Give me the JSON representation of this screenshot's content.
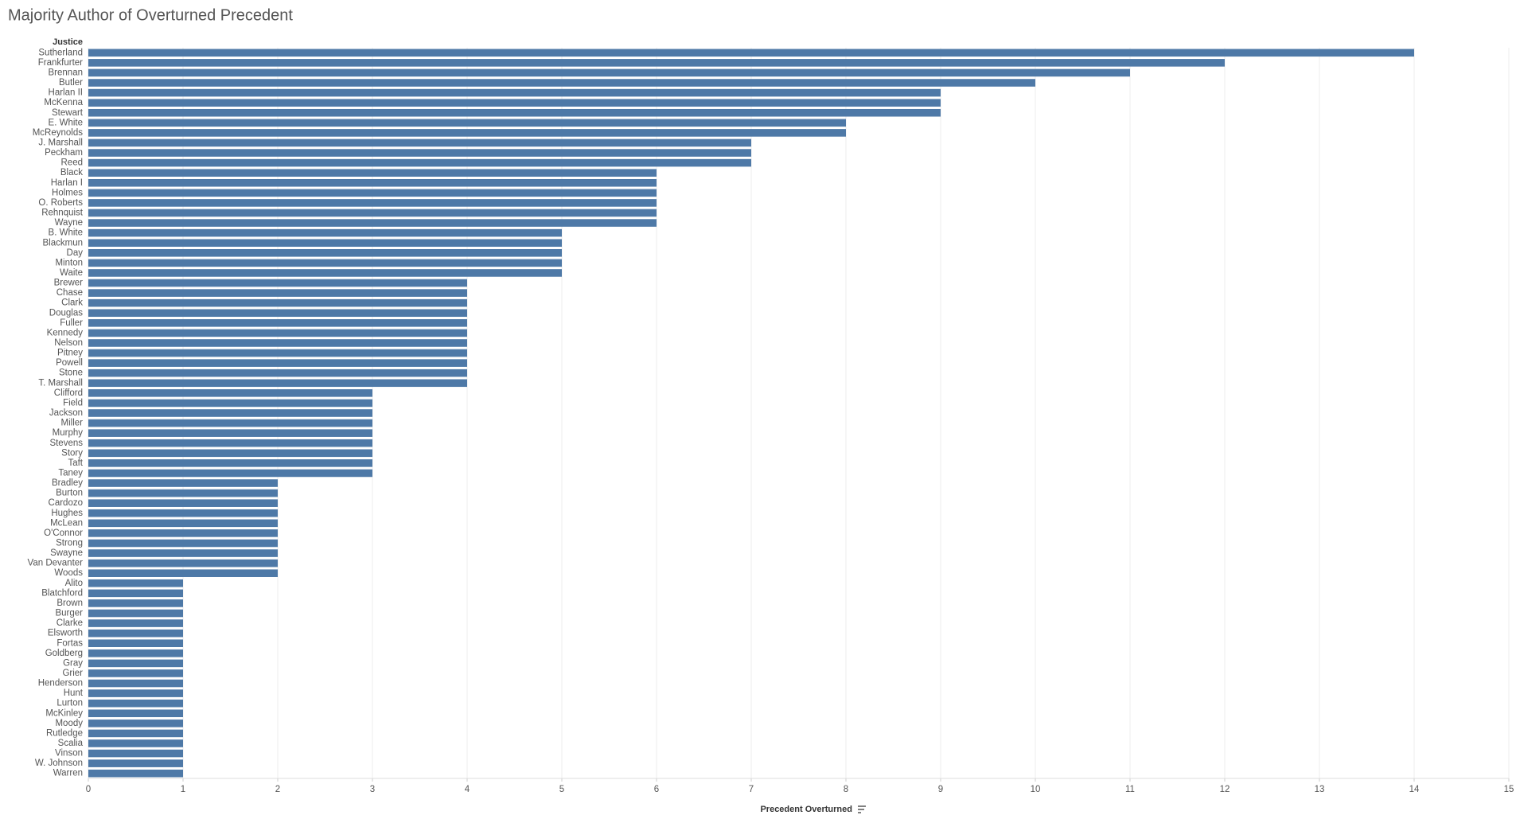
{
  "chart_data": {
    "type": "bar",
    "orientation": "horizontal",
    "title": "Majority Author of Overturned Precedent",
    "y_label": "Justice",
    "x_label": "Precedent Overturned",
    "color": "#4e79a7",
    "grid": true,
    "xlim": [
      0,
      15
    ],
    "xticks": [
      0,
      1,
      2,
      3,
      4,
      5,
      6,
      7,
      8,
      9,
      10,
      11,
      12,
      13,
      14,
      15
    ],
    "categories": [
      "Sutherland",
      "Frankfurter",
      "Brennan",
      "Butler",
      "Harlan II",
      "McKenna",
      "Stewart",
      "E. White",
      "McReynolds",
      "J. Marshall",
      "Peckham",
      "Reed",
      "Black",
      "Harlan I",
      "Holmes",
      "O. Roberts",
      "Rehnquist",
      "Wayne",
      "B. White",
      "Blackmun",
      "Day",
      "Minton",
      "Waite",
      "Brewer",
      "Chase",
      "Clark",
      "Douglas",
      "Fuller",
      "Kennedy",
      "Nelson",
      "Pitney",
      "Powell",
      "Stone",
      "T. Marshall",
      "Clifford",
      "Field",
      "Jackson",
      "Miller",
      "Murphy",
      "Stevens",
      "Story",
      "Taft",
      "Taney",
      "Bradley",
      "Burton",
      "Cardozo",
      "Hughes",
      "McLean",
      "O'Connor",
      "Strong",
      "Swayne",
      "Van Devanter",
      "Woods",
      "Alito",
      "Blatchford",
      "Brown",
      "Burger",
      "Clarke",
      "Elsworth",
      "Fortas",
      "Goldberg",
      "Gray",
      "Grier",
      "Henderson",
      "Hunt",
      "Lurton",
      "McKinley",
      "Moody",
      "Rutledge",
      "Scalia",
      "Vinson",
      "W. Johnson",
      "Warren"
    ],
    "values": [
      14,
      12,
      11,
      10,
      9,
      9,
      9,
      8,
      8,
      7,
      7,
      7,
      6,
      6,
      6,
      6,
      6,
      6,
      5,
      5,
      5,
      5,
      5,
      4,
      4,
      4,
      4,
      4,
      4,
      4,
      4,
      4,
      4,
      4,
      3,
      3,
      3,
      3,
      3,
      3,
      3,
      3,
      3,
      2,
      2,
      2,
      2,
      2,
      2,
      2,
      2,
      2,
      2,
      1,
      1,
      1,
      1,
      1,
      1,
      1,
      1,
      1,
      1,
      1,
      1,
      1,
      1,
      1,
      1,
      1,
      1,
      1,
      1
    ]
  }
}
